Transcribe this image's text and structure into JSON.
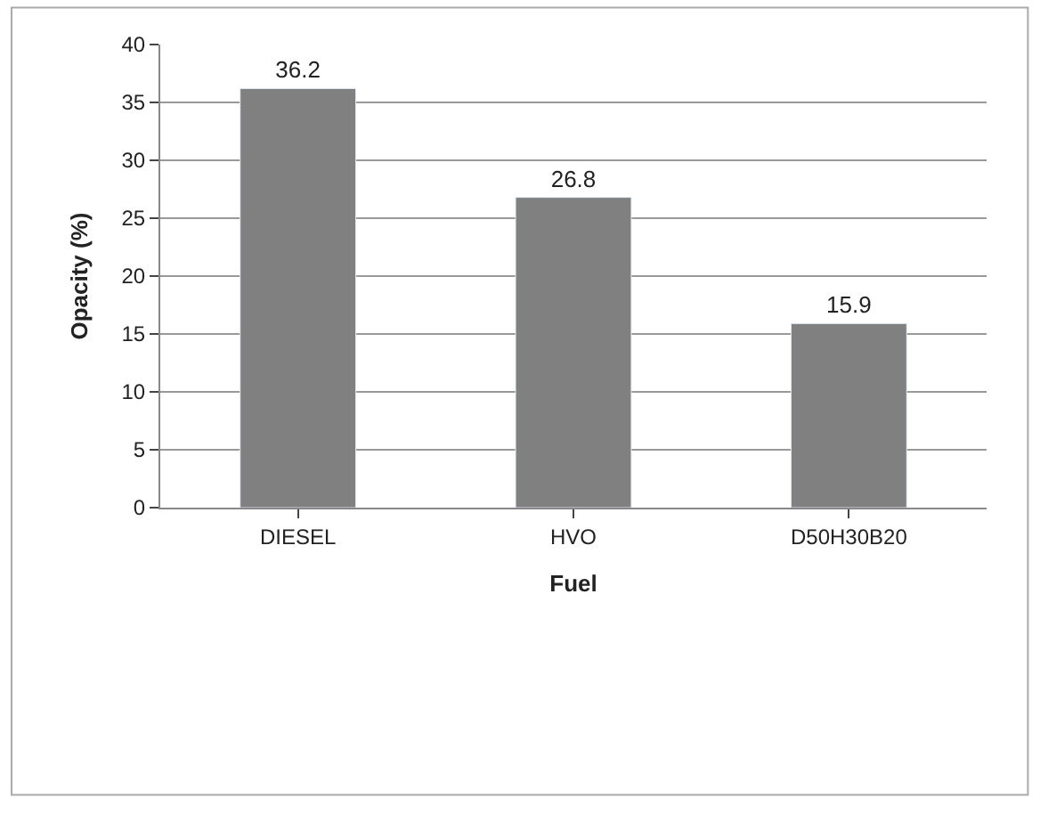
{
  "chart_data": {
    "type": "bar",
    "xlabel": "Fuel",
    "ylabel": "Opacity (%)",
    "categories": [
      "DIESEL",
      "HVO",
      "D50H30B20"
    ],
    "series": [
      {
        "color": "#808080",
        "values": [
          36.2,
          26.8,
          15.9
        ]
      }
    ],
    "ylim": [
      0,
      40
    ],
    "yticks": [
      0,
      5,
      10,
      15,
      20,
      25,
      30,
      35,
      40
    ],
    "grid": "y",
    "data_labels": true
  }
}
